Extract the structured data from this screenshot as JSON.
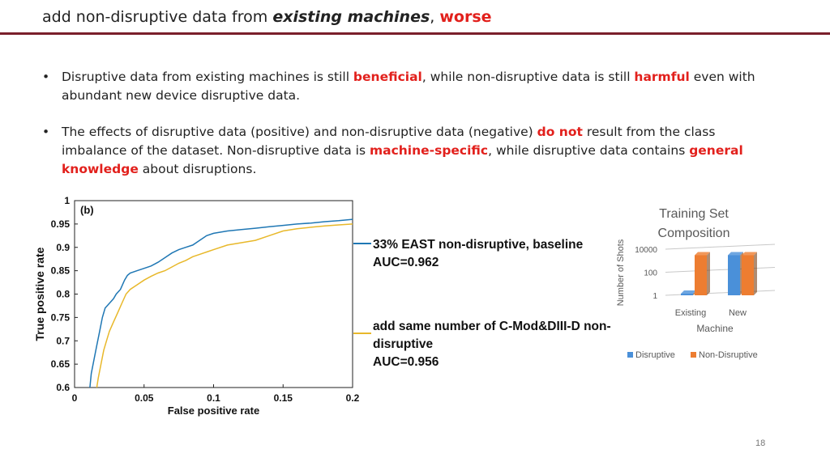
{
  "slide": {
    "title_prefix": "add non-disruptive data from ",
    "title_em": "existing machines",
    "title_sep": ", ",
    "title_red": "worse",
    "page_number": "18"
  },
  "bullets": [
    {
      "t1": "Disruptive data from existing machines is still ",
      "h1": "beneficial",
      "t2": ", while non-disruptive data is still ",
      "h2": "harmful",
      "t3": " even with abundant new device disruptive data."
    },
    {
      "t1": "The effects of disruptive data (positive) and non-disruptive data (negative) ",
      "h1": "do not",
      "t2": " result from the class imbalance of the dataset. Non-disruptive data is ",
      "h2": "machine-specific",
      "t3": ", while disruptive data contains ",
      "h3": "general knowledge",
      "t4": " about disruptions."
    }
  ],
  "chart_data": [
    {
      "type": "line",
      "panel_label": "(b)",
      "xlabel": "False positive rate",
      "ylabel": "True positive rate",
      "xlim": [
        0,
        0.2
      ],
      "ylim": [
        0.6,
        1
      ],
      "xticks": [
        "0",
        "0.05",
        "0.1",
        "0.15",
        "0.2"
      ],
      "yticks": [
        "0.6",
        "0.65",
        "0.7",
        "0.75",
        "0.8",
        "0.85",
        "0.9",
        "0.95",
        "1"
      ],
      "grid": false,
      "series": [
        {
          "name": "33% EAST non-disruptive, baseline",
          "auc_label": "AUC=0.962",
          "color": "#1f77b4",
          "x": [
            0.011,
            0.012,
            0.014,
            0.016,
            0.018,
            0.02,
            0.022,
            0.025,
            0.028,
            0.03,
            0.033,
            0.036,
            0.038,
            0.04,
            0.045,
            0.05,
            0.055,
            0.06,
            0.065,
            0.07,
            0.075,
            0.08,
            0.085,
            0.09,
            0.095,
            0.1,
            0.11,
            0.12,
            0.13,
            0.14,
            0.15,
            0.16,
            0.17,
            0.18,
            0.19,
            0.2
          ],
          "y": [
            0.6,
            0.63,
            0.66,
            0.69,
            0.72,
            0.75,
            0.77,
            0.78,
            0.79,
            0.8,
            0.81,
            0.83,
            0.84,
            0.845,
            0.85,
            0.855,
            0.86,
            0.868,
            0.878,
            0.888,
            0.895,
            0.9,
            0.905,
            0.915,
            0.925,
            0.93,
            0.935,
            0.938,
            0.941,
            0.944,
            0.947,
            0.95,
            0.952,
            0.955,
            0.957,
            0.96
          ]
        },
        {
          "name": "add same number of C-Mod&DIII-D non-disruptive",
          "auc_label": "AUC=0.956",
          "color": "#e8b82a",
          "x": [
            0.016,
            0.017,
            0.019,
            0.021,
            0.023,
            0.025,
            0.028,
            0.031,
            0.034,
            0.037,
            0.04,
            0.045,
            0.05,
            0.055,
            0.06,
            0.065,
            0.07,
            0.075,
            0.08,
            0.085,
            0.09,
            0.095,
            0.1,
            0.11,
            0.12,
            0.13,
            0.14,
            0.15,
            0.16,
            0.17,
            0.18,
            0.19,
            0.2
          ],
          "y": [
            0.6,
            0.62,
            0.65,
            0.68,
            0.7,
            0.72,
            0.74,
            0.76,
            0.78,
            0.8,
            0.81,
            0.82,
            0.83,
            0.838,
            0.845,
            0.85,
            0.858,
            0.866,
            0.872,
            0.88,
            0.885,
            0.89,
            0.895,
            0.905,
            0.91,
            0.915,
            0.925,
            0.935,
            0.94,
            0.943,
            0.946,
            0.948,
            0.95
          ]
        }
      ]
    },
    {
      "type": "bar",
      "title_line1": "Training Set",
      "title_line2": "Composition",
      "xlabel": "Machine",
      "ylabel": "Number of Shots",
      "log_scale": true,
      "yticks": [
        "1",
        "100",
        "10000"
      ],
      "categories": [
        "Existing",
        "New"
      ],
      "series": [
        {
          "name": "Disruptive",
          "color": "#4a90d9",
          "values": [
            0.8,
            3000
          ]
        },
        {
          "name": "Non-Disruptive",
          "color": "#ed7d31",
          "values": [
            3000,
            3000
          ]
        }
      ],
      "legend_position": "bottom"
    }
  ]
}
